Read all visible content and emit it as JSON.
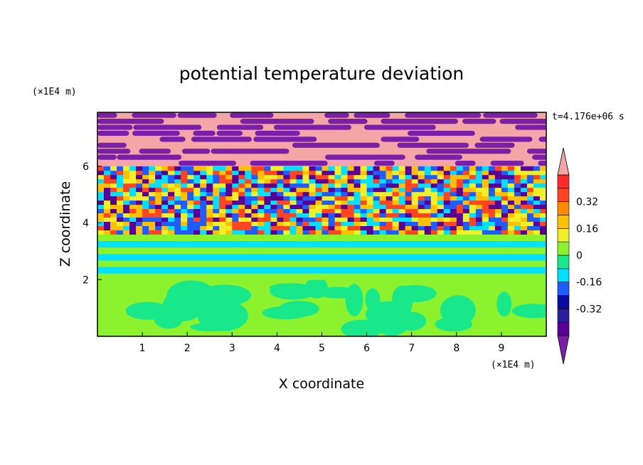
{
  "chart_data": {
    "type": "heatmap",
    "title": "potential temperature deviation",
    "xlabel": "X coordinate",
    "ylabel": "Z coordinate",
    "x_unit": "(×1E4 m)",
    "y_unit": "(×1E4 m)",
    "time_label": "t=4.176e+06 s",
    "xlim": [
      0,
      10
    ],
    "ylim": [
      0,
      7.9
    ],
    "x_ticks": [
      "1",
      "2",
      "3",
      "4",
      "5",
      "6",
      "7",
      "8",
      "9"
    ],
    "y_ticks": [
      "2",
      "4",
      "6"
    ],
    "colorbar": {
      "levels": [
        -0.48,
        -0.4,
        -0.32,
        -0.24,
        -0.16,
        -0.08,
        0,
        0.08,
        0.16,
        0.24,
        0.32,
        0.4,
        0.48
      ],
      "tick_labels": [
        "0.32",
        "0.16",
        "0",
        "-0.16",
        "-0.32"
      ],
      "tick_values": [
        0.32,
        0.16,
        0,
        -0.16,
        -0.32
      ],
      "band_colors": [
        "#5a0096",
        "#2a1f9e",
        "#0a0aa0",
        "#1e5cff",
        "#00e0ff",
        "#18e88a",
        "#8cf22e",
        "#f0f028",
        "#ffc000",
        "#ff8c00",
        "#ff4422",
        "#ff2a2a"
      ],
      "under_color": "#7a1fa8",
      "over_color": "#f4a6a6"
    },
    "layers": [
      {
        "z_range": [
          0,
          2.0
        ],
        "pattern": "green-cyan eddies",
        "colors": [
          "#8cf22e",
          "#18e88a"
        ]
      },
      {
        "z_range": [
          2.0,
          3.6
        ],
        "pattern": "horizontal bands",
        "colors": [
          "#8cf22e",
          "#18e88a",
          "#00e0ff",
          "#f0f028"
        ]
      },
      {
        "z_range": [
          3.6,
          6.0
        ],
        "pattern": "mixed turbulent",
        "colors": [
          "#f0f028",
          "#ffc000",
          "#ff4422",
          "#00e0ff",
          "#1e5cff",
          "#5a0096"
        ]
      },
      {
        "z_range": [
          6.0,
          7.9
        ],
        "pattern": "alternating pink/purple streaks",
        "colors": [
          "#f4a6a6",
          "#7a1fa8"
        ]
      }
    ]
  }
}
